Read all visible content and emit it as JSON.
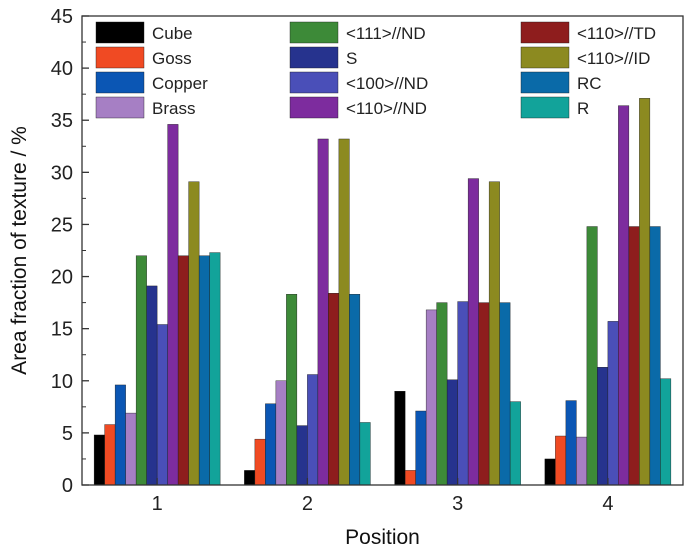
{
  "chart_data": {
    "type": "bar",
    "title": "",
    "xlabel": "Position",
    "ylabel": "Area fraction of texture / %",
    "ylim": [
      0,
      45
    ],
    "y_ticks": [
      0,
      5,
      10,
      15,
      20,
      25,
      30,
      35,
      40,
      45
    ],
    "categories": [
      "1",
      "2",
      "3",
      "4"
    ],
    "grid": false,
    "legend_position": "top, three columns inside plot",
    "series": [
      {
        "name": "Cube",
        "color": "#000000",
        "values": [
          4.8,
          1.4,
          9.0,
          2.5
        ]
      },
      {
        "name": "Goss",
        "color": "#f04a23",
        "values": [
          5.8,
          4.4,
          1.4,
          4.7
        ]
      },
      {
        "name": "Copper",
        "color": "#0b56b4",
        "values": [
          9.6,
          7.8,
          7.1,
          8.1
        ]
      },
      {
        "name": "Brass",
        "color": "#a67fc4",
        "values": [
          6.9,
          10.0,
          16.8,
          4.6
        ]
      },
      {
        "name": "<111>//ND",
        "color": "#3d8a38",
        "values": [
          22.0,
          18.3,
          17.5,
          24.8
        ]
      },
      {
        "name": "S",
        "color": "#26338e",
        "values": [
          19.1,
          5.7,
          10.1,
          11.3
        ]
      },
      {
        "name": "<100>//ND",
        "color": "#4a4fb8",
        "values": [
          15.4,
          10.6,
          17.6,
          15.7
        ]
      },
      {
        "name": "<110>//ND",
        "color": "#7d2c9e",
        "values": [
          34.6,
          33.2,
          29.4,
          36.4
        ]
      },
      {
        "name": "<110>//TD",
        "color": "#8e1d1d",
        "values": [
          22.0,
          18.4,
          17.5,
          24.8
        ]
      },
      {
        "name": "<110>//ID",
        "color": "#8c8a20",
        "values": [
          29.1,
          33.2,
          29.1,
          37.1
        ]
      },
      {
        "name": "RC",
        "color": "#0a6aa8",
        "values": [
          22.0,
          18.3,
          17.5,
          24.8
        ]
      },
      {
        "name": "R",
        "color": "#12a39a",
        "values": [
          22.3,
          6.0,
          8.0,
          10.2
        ]
      }
    ]
  }
}
